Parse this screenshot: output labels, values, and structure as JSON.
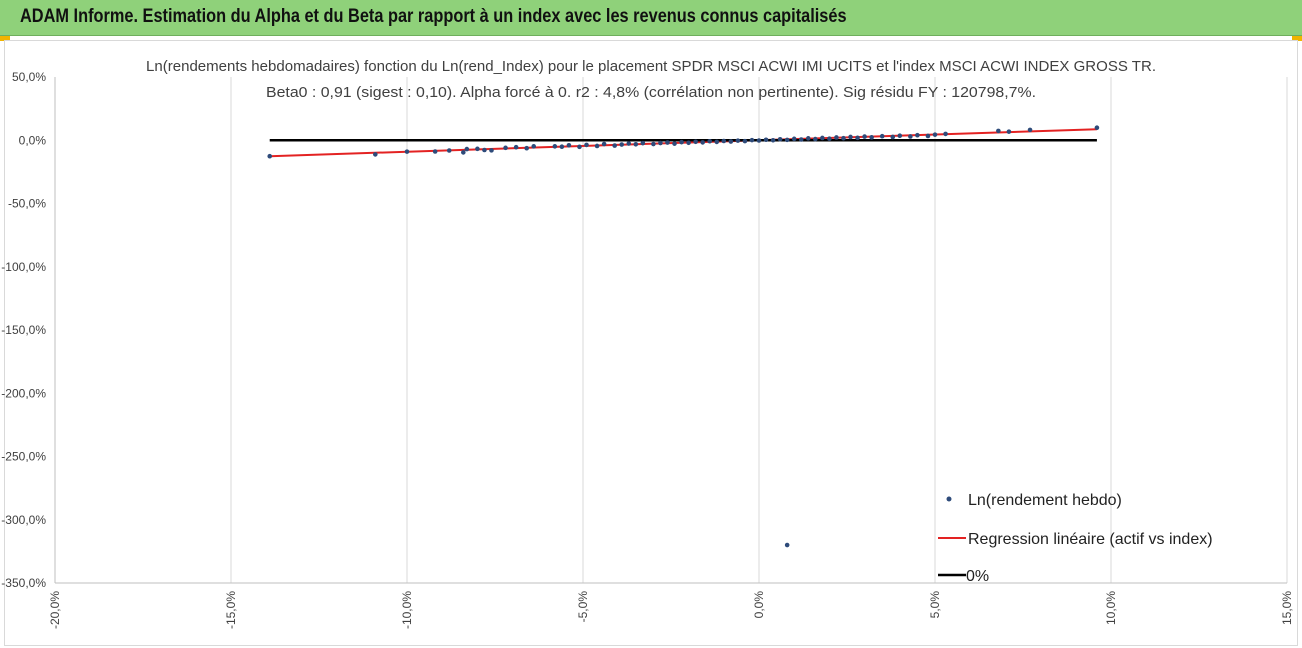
{
  "banner": {
    "title": "ADAM Informe. Estimation du Alpha et du Beta par rapport à un index avec les revenus connus capitalisés",
    "background": "#8fd17a"
  },
  "chart_data": {
    "type": "scatter",
    "title": "Ln(rendements hebdomadaires) fonction du Ln(rend_Index) pour le placement SPDR MSCI ACWI IMI UCITS  et l'index MSCI ACWI INDEX GROSS TR.",
    "subtitle": "Beta0 : 0,91 (sigest : 0,10). Alpha forcé à 0. r2 : 4,8% (corrélation non pertinente). Sig résidu FY : 120798,7%.",
    "xlim": [
      -20,
      15
    ],
    "ylim": [
      -350,
      50
    ],
    "x_ticks": [
      -20,
      -15,
      -10,
      -5,
      0,
      5,
      10,
      15
    ],
    "y_ticks": [
      50,
      0,
      -50,
      -100,
      -150,
      -200,
      -250,
      -300,
      -350
    ],
    "x_tick_labels": [
      "-20,0%",
      "-15,0%",
      "-10,0%",
      "-5,0%",
      "0,0%",
      "5,0%",
      "10,0%",
      "15,0%"
    ],
    "y_tick_labels": [
      "50,0%",
      "0,0%",
      "-50,0%",
      "-100,0%",
      "-150,0%",
      "-200,0%",
      "-250,0%",
      "-300,0%",
      "-350,0%"
    ],
    "grid": "vertical",
    "legend_position": "bottom-right",
    "series": [
      {
        "name": "Ln(rendement hebdo)",
        "kind": "points",
        "color": "#2e4b7a",
        "points": [
          [
            -13.9,
            -12.6
          ],
          [
            -10.9,
            -11.2
          ],
          [
            -10.0,
            -9.0
          ],
          [
            -9.2,
            -8.9
          ],
          [
            -8.8,
            -8.1
          ],
          [
            -8.4,
            -9.6
          ],
          [
            -8.3,
            -7.0
          ],
          [
            -8.0,
            -6.8
          ],
          [
            -7.8,
            -7.7
          ],
          [
            -7.6,
            -8.0
          ],
          [
            -7.2,
            -6.0
          ],
          [
            -6.9,
            -5.5
          ],
          [
            -6.6,
            -6.3
          ],
          [
            -6.4,
            -4.8
          ],
          [
            -5.8,
            -4.8
          ],
          [
            -5.6,
            -5.1
          ],
          [
            -5.4,
            -4.0
          ],
          [
            -5.1,
            -5.2
          ],
          [
            -4.9,
            -3.7
          ],
          [
            -4.6,
            -4.5
          ],
          [
            -4.4,
            -3.0
          ],
          [
            -4.1,
            -4.2
          ],
          [
            -3.9,
            -3.4
          ],
          [
            -3.7,
            -2.6
          ],
          [
            -3.5,
            -3.2
          ],
          [
            -3.3,
            -2.3
          ],
          [
            -3.0,
            -3.0
          ],
          [
            -2.8,
            -2.2
          ],
          [
            -2.6,
            -1.8
          ],
          [
            -2.4,
            -2.7
          ],
          [
            -2.2,
            -1.5
          ],
          [
            -2.0,
            -2.0
          ],
          [
            -1.8,
            -1.2
          ],
          [
            -1.6,
            -1.7
          ],
          [
            -1.4,
            -0.8
          ],
          [
            -1.2,
            -1.3
          ],
          [
            -1.0,
            -0.6
          ],
          [
            -0.8,
            -1.0
          ],
          [
            -0.6,
            -0.3
          ],
          [
            -0.4,
            -0.7
          ],
          [
            -0.2,
            0.1
          ],
          [
            0.0,
            -0.2
          ],
          [
            0.2,
            0.4
          ],
          [
            0.4,
            0.0
          ],
          [
            0.6,
            0.8
          ],
          [
            0.8,
            0.3
          ],
          [
            1.0,
            1.1
          ],
          [
            1.2,
            0.6
          ],
          [
            1.4,
            1.5
          ],
          [
            1.6,
            0.9
          ],
          [
            1.8,
            1.8
          ],
          [
            2.0,
            1.2
          ],
          [
            2.2,
            2.2
          ],
          [
            2.4,
            1.6
          ],
          [
            2.6,
            2.6
          ],
          [
            2.8,
            1.9
          ],
          [
            3.0,
            2.9
          ],
          [
            3.2,
            2.3
          ],
          [
            3.5,
            3.2
          ],
          [
            3.8,
            2.6
          ],
          [
            4.0,
            3.6
          ],
          [
            4.3,
            3.0
          ],
          [
            4.5,
            4.0
          ],
          [
            4.8,
            3.4
          ],
          [
            5.0,
            4.4
          ],
          [
            5.3,
            5.0
          ],
          [
            6.8,
            7.4
          ],
          [
            7.1,
            6.8
          ],
          [
            7.7,
            8.2
          ],
          [
            9.6,
            9.9
          ],
          [
            0.8,
            -320.0
          ]
        ]
      },
      {
        "name": "Regression linéaire (actif vs index)",
        "kind": "line",
        "color": "#e32222",
        "points": [
          [
            -13.9,
            -12.6
          ],
          [
            9.6,
            8.7
          ]
        ]
      },
      {
        "name": "0%",
        "kind": "line",
        "color": "#000000",
        "points": [
          [
            -13.9,
            0
          ],
          [
            9.6,
            0
          ]
        ]
      }
    ]
  }
}
